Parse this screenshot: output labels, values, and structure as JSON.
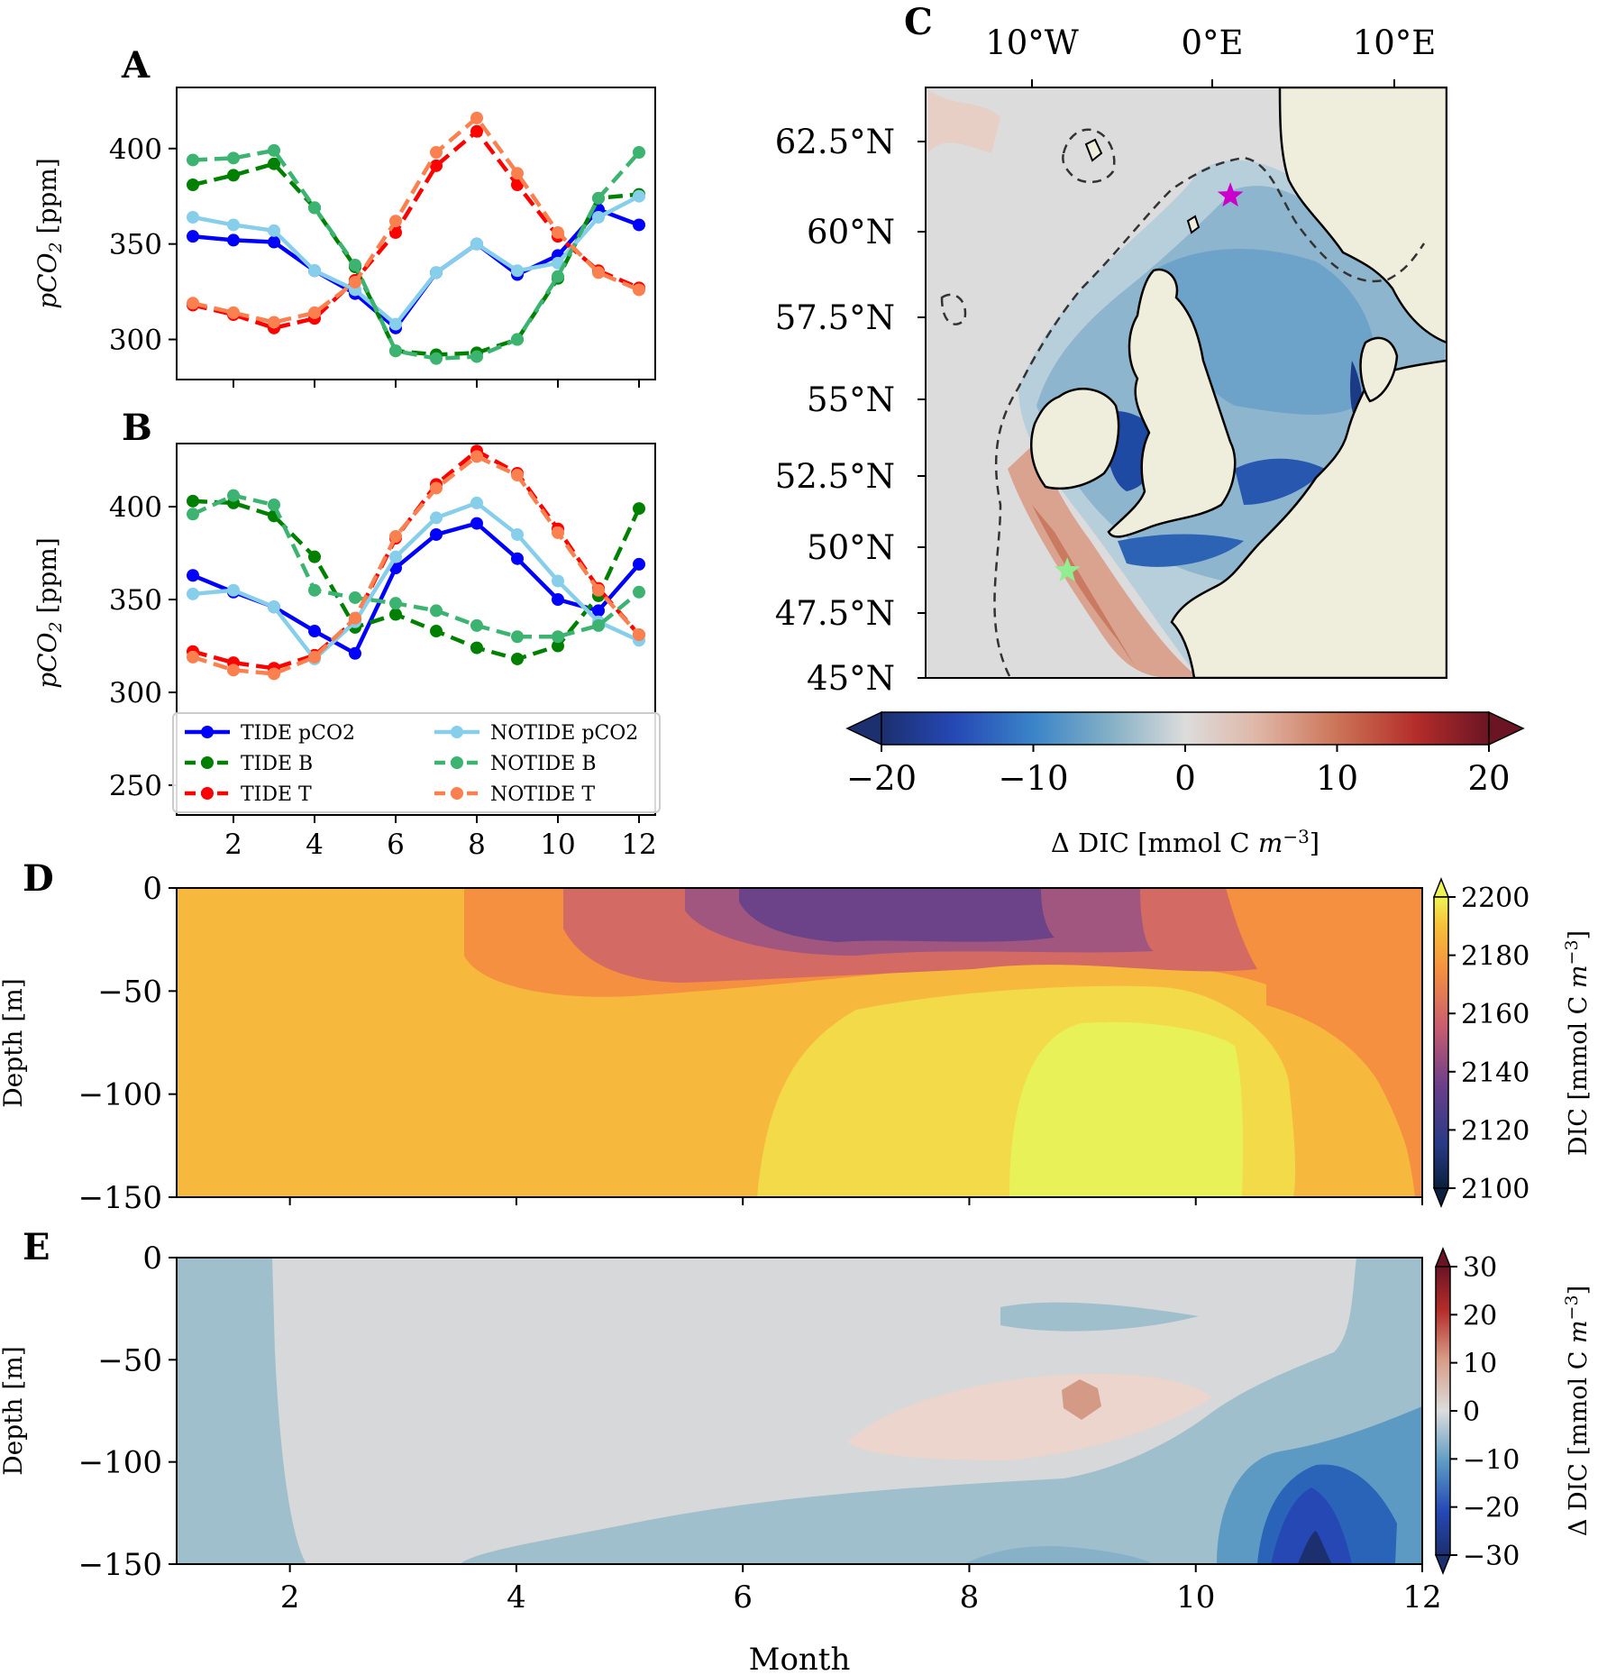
{
  "chart_data": [
    {
      "panel": "A",
      "type": "line",
      "ylabel": "pCO2 [ppm]",
      "ylim": [
        279,
        432
      ],
      "xlim": [
        0.6,
        12.4
      ],
      "yticks": [
        300,
        350,
        400
      ],
      "series": [
        {
          "name": "TIDE pCO2",
          "color": "#0000ff",
          "dashed": false,
          "values": [
            354,
            352,
            351,
            336,
            324,
            306,
            335,
            350,
            334,
            344,
            368,
            360
          ]
        },
        {
          "name": "TIDE B",
          "color": "#008000",
          "dashed": true,
          "values": [
            381,
            386,
            392,
            369,
            338,
            294,
            292,
            293,
            300,
            332,
            374,
            376
          ]
        },
        {
          "name": "TIDE T",
          "color": "#ff0000",
          "dashed": true,
          "values": [
            318,
            313,
            306,
            311,
            331,
            356,
            391,
            409,
            381,
            354,
            336,
            327
          ]
        },
        {
          "name": "NOTIDE pCO2",
          "color": "#87ceeb",
          "dashed": false,
          "values": [
            364,
            360,
            357,
            336,
            326,
            308,
            335,
            350,
            336,
            340,
            364,
            375
          ]
        },
        {
          "name": "NOTIDE B",
          "color": "#3cb371",
          "dashed": true,
          "values": [
            394,
            395,
            399,
            369,
            339,
            294,
            290,
            291,
            300,
            333,
            374,
            398
          ]
        },
        {
          "name": "NOTIDE T",
          "color": "#fa8050",
          "dashed": true,
          "values": [
            319,
            314,
            309,
            314,
            330,
            362,
            398,
            416,
            387,
            356,
            335,
            326
          ]
        }
      ]
    },
    {
      "panel": "B",
      "type": "line",
      "ylabel": "pCO2 [ppm]",
      "ylim": [
        234,
        434
      ],
      "xlim": [
        0.6,
        12.4
      ],
      "yticks": [
        250,
        300,
        350,
        400
      ],
      "xticks": [
        2,
        4,
        6,
        8,
        10,
        12
      ],
      "series": [
        {
          "name": "TIDE pCO2",
          "color": "#0000ff",
          "dashed": false,
          "values": [
            363,
            354,
            346,
            333,
            321,
            367,
            385,
            391,
            372,
            350,
            344,
            369
          ]
        },
        {
          "name": "TIDE B",
          "color": "#008000",
          "dashed": true,
          "values": [
            403,
            402,
            395,
            373,
            335,
            342,
            333,
            324,
            318,
            325,
            352,
            399
          ]
        },
        {
          "name": "TIDE T",
          "color": "#ff0000",
          "dashed": true,
          "values": [
            322,
            316,
            313,
            320,
            339,
            383,
            412,
            430,
            418,
            388,
            356,
            331
          ]
        },
        {
          "name": "NOTIDE pCO2",
          "color": "#87ceeb",
          "dashed": false,
          "values": [
            353,
            355,
            346,
            318,
            338,
            373,
            394,
            402,
            385,
            360,
            338,
            328
          ]
        },
        {
          "name": "NOTIDE B",
          "color": "#3cb371",
          "dashed": true,
          "values": [
            396,
            406,
            401,
            355,
            351,
            348,
            344,
            336,
            330,
            330,
            336,
            354
          ]
        },
        {
          "name": "NOTIDE T",
          "color": "#fa8050",
          "dashed": true,
          "values": [
            319,
            312,
            310,
            319,
            340,
            384,
            410,
            427,
            417,
            386,
            355,
            331
          ]
        }
      ],
      "legend": {
        "placement": "lower-left",
        "columns": 2
      }
    },
    {
      "panel": "C",
      "type": "heatmap",
      "description_label": "map",
      "lon_ticks": [
        "10°W",
        "0°E",
        "10°E"
      ],
      "lat_ticks": [
        "62.5°N",
        "60°N",
        "57.5°N",
        "55°N",
        "52.5°N",
        "50°N",
        "47.5°N",
        "45°N"
      ],
      "colorbar": {
        "label": "Δ DIC [mmol C m⁻³]",
        "ticks": [
          -20,
          -10,
          0,
          10,
          20
        ],
        "range": [
          -20,
          20
        ],
        "extend": "both"
      },
      "markers": [
        {
          "name": "magenta-star",
          "color": "#cc00cc",
          "lon": 1,
          "lat": 61
        },
        {
          "name": "light-green-star",
          "color": "#90ee90",
          "lon": -8,
          "lat": 50
        }
      ]
    },
    {
      "panel": "D",
      "type": "heatmap",
      "ylabel": "Depth [m]",
      "ylim": [
        -150,
        0
      ],
      "yticks": [
        0,
        -50,
        -100,
        -150
      ],
      "xlim": [
        1,
        12
      ],
      "colorbar": {
        "label": "DIC [mmol C m⁻³]",
        "ticks": [
          2100,
          2120,
          2140,
          2160,
          2180,
          2200
        ],
        "range": [
          2100,
          2200
        ],
        "extend": "both"
      }
    },
    {
      "panel": "E",
      "type": "heatmap",
      "ylabel": "Depth [m]",
      "xlabel": "Month",
      "ylim": [
        -150,
        0
      ],
      "yticks": [
        0,
        -50,
        -100,
        -150
      ],
      "xlim": [
        1,
        12
      ],
      "xticks": [
        2,
        4,
        6,
        8,
        10,
        12
      ],
      "colorbar": {
        "label": "Δ DIC [mmol C m⁻³]",
        "ticks": [
          -30,
          -20,
          -10,
          0,
          10,
          20,
          30
        ],
        "range": [
          -30,
          30
        ],
        "extend": "both"
      }
    }
  ],
  "labels": {
    "panel_a": "A",
    "panel_b": "B",
    "panel_c": "C",
    "panel_d": "D",
    "panel_e": "E",
    "ylabel_pco2": "pCO",
    "ylabel_pco2_sub": "2",
    "ylabel_pco2_unit": " [ppm]",
    "cbar_c_label": "Δ DIC [mmol C ",
    "cbar_c_unit_m": "m",
    "cbar_c_unit_exp": "−3",
    "cbar_c_close": "]",
    "cbar_d_label": "DIC [mmol C ",
    "cbar_e_label": "Δ DIC [mmol C ",
    "depth_label": "Depth [m]",
    "xlabel_month": "Month"
  },
  "colors": {
    "land": "#efeedd",
    "ocean_neutral": "#dcdcdc"
  }
}
